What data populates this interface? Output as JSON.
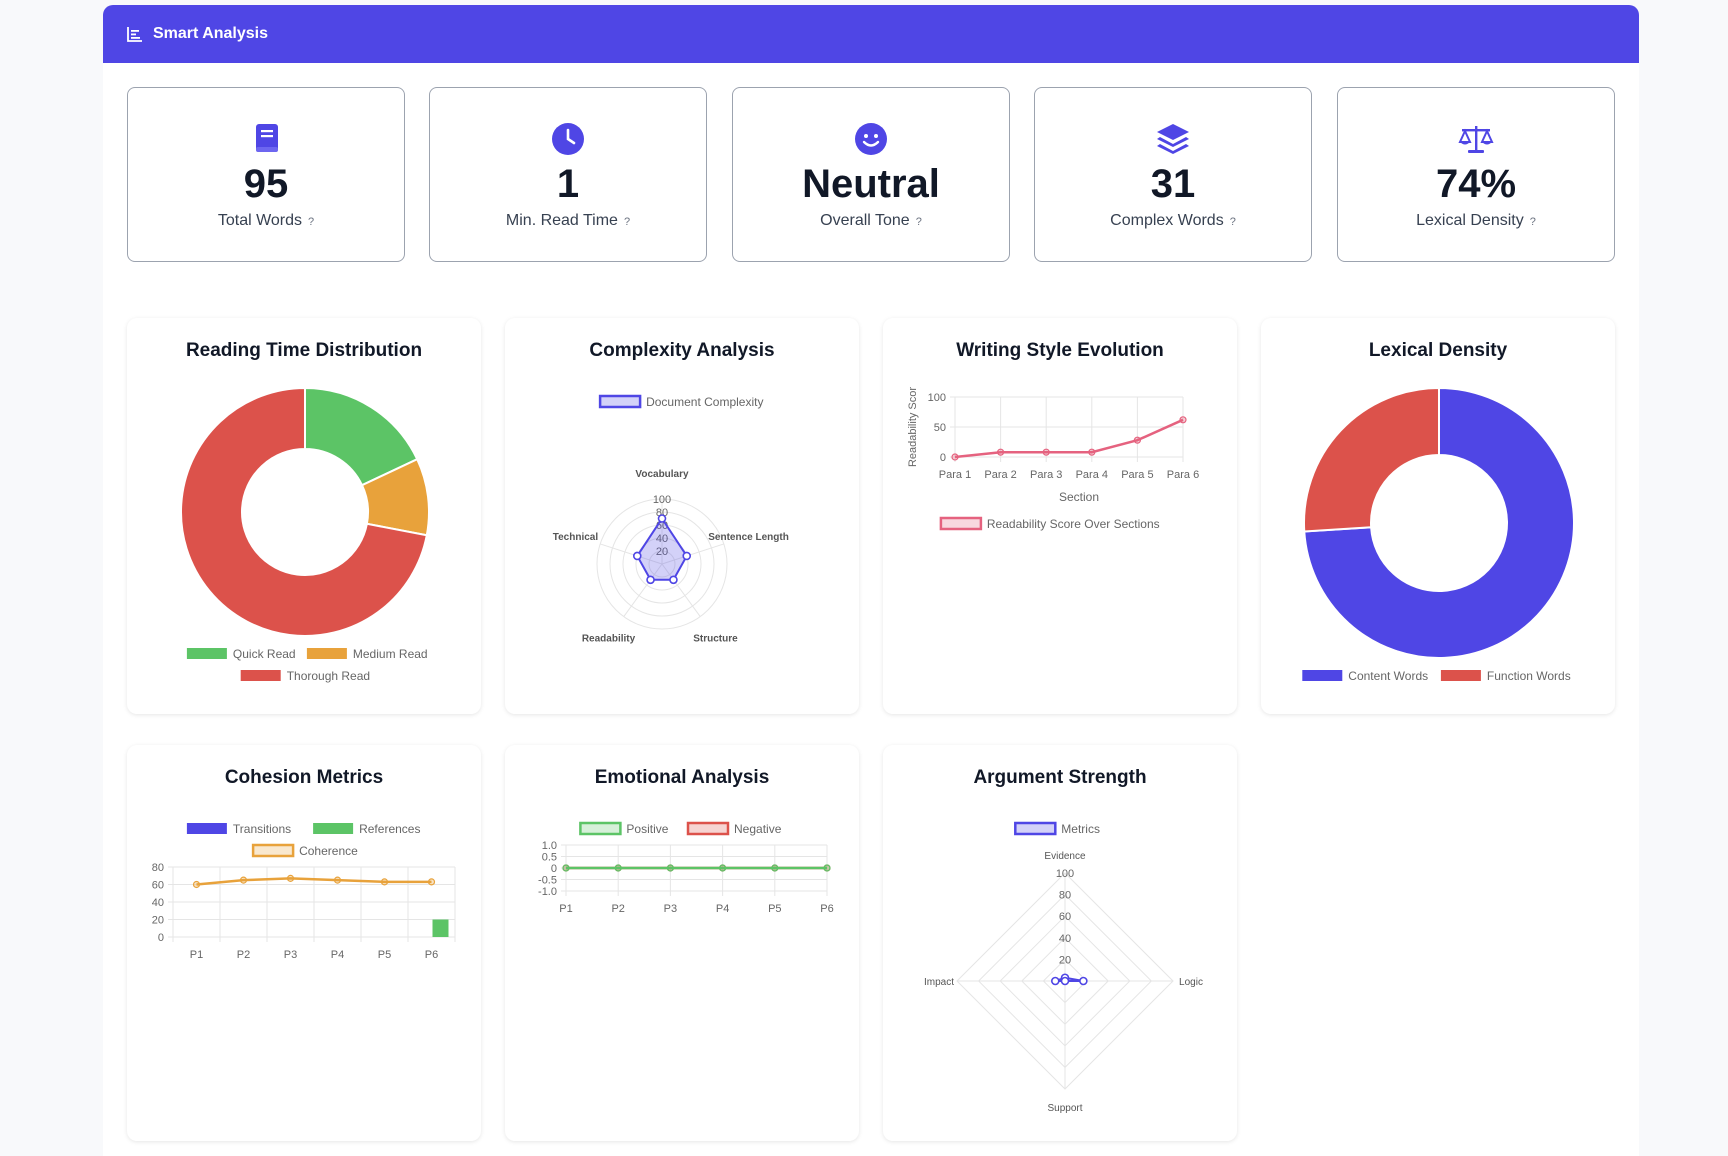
{
  "app": {
    "title": "Smart Analysis",
    "icon": "chart-bar-icon"
  },
  "stats": [
    {
      "value": "95",
      "label": "Total Words",
      "hint": "?",
      "icon": "book-icon"
    },
    {
      "value": "1",
      "label": "Min. Read Time",
      "hint": "?",
      "icon": "clock-icon"
    },
    {
      "value": "Neutral",
      "label": "Overall Tone",
      "hint": "?",
      "icon": "smile-icon"
    },
    {
      "value": "31",
      "label": "Complex Words",
      "hint": "?",
      "icon": "layers-icon"
    },
    {
      "value": "74%",
      "label": "Lexical Density",
      "hint": "?",
      "icon": "scale-icon"
    }
  ],
  "colors": {
    "accent": "#4f46e5",
    "green": "#5cc466",
    "orange": "#e8a23b",
    "red": "#dc524b",
    "pink": "#e5627f"
  },
  "chart_data": [
    {
      "id": "reading-time",
      "type": "pie",
      "title": "Reading Time Distribution",
      "labels": [
        "Quick Read",
        "Medium Read",
        "Thorough Read"
      ],
      "values": [
        18,
        10,
        72
      ],
      "colors": [
        "#5cc466",
        "#e8a23b",
        "#dc524b"
      ],
      "legend": "bottom"
    },
    {
      "id": "complexity",
      "type": "radar",
      "title": "Complexity Analysis",
      "labels": [
        "Vocabulary",
        "Sentence Length",
        "Structure",
        "Readability",
        "Technical"
      ],
      "series": [
        {
          "name": "Document Complexity",
          "values": [
            70,
            40,
            30,
            30,
            40
          ]
        }
      ],
      "ticks": [
        "20",
        "40",
        "60",
        "80",
        "100"
      ],
      "range": [
        0,
        100
      ],
      "legend": "top"
    },
    {
      "id": "writing-style",
      "type": "line",
      "title": "Writing Style Evolution",
      "categories": [
        "Para 1",
        "Para 2",
        "Para 3",
        "Para 4",
        "Para 5",
        "Para 6"
      ],
      "series": [
        {
          "name": "Readability Score Over Sections",
          "values": [
            0,
            8,
            8,
            8,
            28,
            62
          ]
        }
      ],
      "xlabel": "Section",
      "ylabel": "Readability Scor",
      "yticks": [
        "0",
        "50",
        "100"
      ],
      "ylim": [
        0,
        100
      ],
      "legend": "bottom"
    },
    {
      "id": "lexical-density",
      "type": "pie",
      "title": "Lexical Density",
      "labels": [
        "Content Words",
        "Function Words"
      ],
      "values": [
        74,
        26
      ],
      "colors": [
        "#4f46e5",
        "#dc524b"
      ],
      "legend": "bottom"
    },
    {
      "id": "cohesion",
      "type": "bar",
      "title": "Cohesion Metrics",
      "categories": [
        "P1",
        "P2",
        "P3",
        "P4",
        "P5",
        "P6"
      ],
      "series": [
        {
          "name": "Transitions",
          "values": [
            0,
            0,
            0,
            0,
            0,
            0
          ]
        },
        {
          "name": "References",
          "values": [
            0,
            0,
            0,
            0,
            0,
            20
          ]
        },
        {
          "name": "Coherence",
          "values": [
            60,
            65,
            67,
            65,
            63,
            63
          ]
        }
      ],
      "yticks": [
        "0",
        "20",
        "40",
        "60",
        "80"
      ],
      "ylim": [
        0,
        80
      ],
      "legend": "top"
    },
    {
      "id": "emotional",
      "type": "line",
      "title": "Emotional Analysis",
      "categories": [
        "P1",
        "P2",
        "P3",
        "P4",
        "P5",
        "P6"
      ],
      "series": [
        {
          "name": "Positive",
          "values": [
            0,
            0,
            0,
            0,
            0,
            0
          ]
        },
        {
          "name": "Negative",
          "values": [
            0,
            0,
            0,
            0,
            0,
            0
          ]
        }
      ],
      "yticks": [
        "-1.0",
        "-0.5",
        "0",
        "0.5",
        "1.0"
      ],
      "ylim": [
        -1,
        1
      ],
      "legend": "top"
    },
    {
      "id": "argument",
      "type": "radar",
      "title": "Argument Strength",
      "labels": [
        "Evidence",
        "Logic",
        "Support",
        "Impact"
      ],
      "series": [
        {
          "name": "Metrics",
          "values": [
            3,
            17,
            0,
            9
          ]
        }
      ],
      "ticks": [
        "20",
        "40",
        "60",
        "80",
        "100"
      ],
      "range": [
        0,
        100
      ],
      "legend": "top"
    }
  ]
}
